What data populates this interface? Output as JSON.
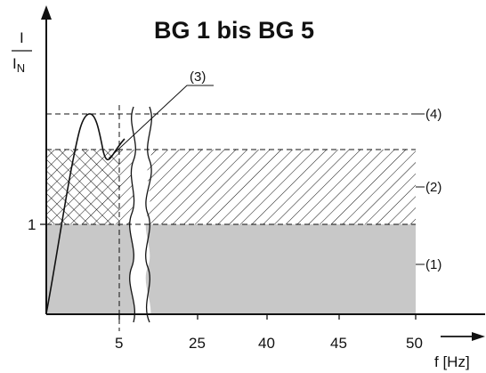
{
  "title": "BG 1 bis BG 5",
  "y_axis": {
    "numerator": "I",
    "denominator": "I",
    "denominator_sub": "N",
    "tick_label": "1"
  },
  "x_axis": {
    "label": "f [Hz]",
    "ticks": [
      "5",
      "25",
      "40",
      "45",
      "50"
    ]
  },
  "callouts": [
    "(1)",
    "(2)",
    "(3)",
    "(4)"
  ],
  "colors": {
    "region_1_fill": "#c8c8c8",
    "line": "#111111"
  }
}
